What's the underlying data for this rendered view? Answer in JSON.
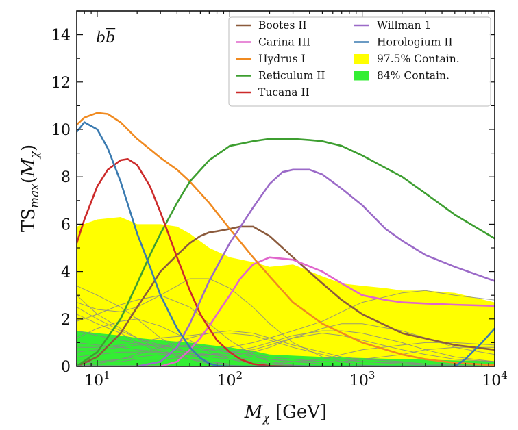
{
  "chart_data": {
    "type": "line",
    "title": "",
    "annotation": "b̅b",
    "xlabel": "M_χ [GeV]",
    "ylabel": "TS_max(M_χ)",
    "xscale": "log",
    "xlim": [
      7,
      10000
    ],
    "ylim": [
      0,
      15
    ],
    "grid": false,
    "legend_position": "top-right",
    "x_tick_labels": [
      {
        "value": 10,
        "label": "10",
        "exp": "1"
      },
      {
        "value": 100,
        "label": "10",
        "exp": "2"
      },
      {
        "value": 1000,
        "label": "10",
        "exp": "3"
      },
      {
        "value": 10000,
        "label": "10",
        "exp": "4"
      }
    ],
    "y_tick_labels": [
      "0",
      "2",
      "4",
      "6",
      "8",
      "10",
      "12",
      "14"
    ],
    "bands": [
      {
        "name": "97.5% Contain.",
        "color": "#ffff00",
        "x": [
          7,
          10,
          15,
          20,
          25,
          30,
          40,
          50,
          70,
          100,
          150,
          200,
          300,
          500,
          700,
          1000,
          1500,
          2000,
          3000,
          5000,
          10000
        ],
        "upper": [
          5.9,
          6.2,
          6.3,
          6.0,
          6.0,
          6.0,
          5.9,
          5.6,
          5.0,
          4.6,
          4.4,
          4.2,
          4.3,
          3.8,
          3.5,
          3.4,
          3.3,
          3.2,
          3.2,
          3.1,
          2.7
        ]
      },
      {
        "name": "84% Contain.",
        "color": "#33ee33",
        "x": [
          7,
          10,
          15,
          20,
          30,
          50,
          70,
          100,
          150,
          200,
          300,
          500,
          1000,
          2000,
          3000,
          5000,
          10000
        ],
        "upper": [
          1.5,
          1.4,
          1.3,
          1.2,
          1.1,
          1.0,
          0.9,
          0.8,
          0.65,
          0.5,
          0.45,
          0.4,
          0.35,
          0.3,
          0.28,
          0.25,
          0.22
        ]
      }
    ],
    "series": [
      {
        "name": "Bootes II",
        "color": "#8b5a3c",
        "x": [
          7,
          10,
          15,
          20,
          25,
          30,
          40,
          50,
          60,
          70,
          80,
          100,
          120,
          150,
          200,
          300,
          500,
          700,
          1000,
          2000,
          5000,
          10000
        ],
        "y": [
          0,
          0.4,
          1.4,
          2.5,
          3.3,
          4.0,
          4.7,
          5.2,
          5.5,
          5.65,
          5.7,
          5.8,
          5.9,
          5.9,
          5.5,
          4.6,
          3.5,
          2.8,
          2.2,
          1.4,
          0.9,
          0.7
        ]
      },
      {
        "name": "Carina III",
        "color": "#e066cc",
        "x": [
          7,
          15,
          30,
          40,
          50,
          60,
          70,
          80,
          100,
          120,
          150,
          200,
          300,
          500,
          700,
          1000,
          1500,
          2000,
          3000,
          5000,
          10000
        ],
        "y": [
          0,
          0,
          0,
          0.2,
          0.7,
          1.2,
          1.7,
          2.2,
          3.0,
          3.7,
          4.3,
          4.6,
          4.5,
          4.0,
          3.5,
          3.0,
          2.8,
          2.7,
          2.65,
          2.6,
          2.55
        ]
      },
      {
        "name": "Hydrus I",
        "color": "#f08a20",
        "x": [
          7,
          8,
          10,
          12,
          15,
          20,
          30,
          40,
          50,
          70,
          100,
          150,
          200,
          300,
          500,
          1000,
          2000,
          3000,
          5000,
          10000
        ],
        "y": [
          10.2,
          10.5,
          10.7,
          10.65,
          10.3,
          9.6,
          8.8,
          8.3,
          7.8,
          6.9,
          5.8,
          4.6,
          3.8,
          2.7,
          1.8,
          1.0,
          0.5,
          0.3,
          0.15,
          0.05
        ]
      },
      {
        "name": "Reticulum II",
        "color": "#3d9e30",
        "x": [
          7,
          10,
          15,
          20,
          25,
          30,
          40,
          50,
          70,
          100,
          150,
          200,
          250,
          300,
          400,
          500,
          700,
          1000,
          2000,
          3000,
          5000,
          10000
        ],
        "y": [
          0,
          0.6,
          2.0,
          3.5,
          4.7,
          5.6,
          6.9,
          7.8,
          8.7,
          9.3,
          9.5,
          9.6,
          9.6,
          9.6,
          9.55,
          9.5,
          9.3,
          8.9,
          8.0,
          7.3,
          6.4,
          5.4
        ]
      },
      {
        "name": "Tucana II",
        "color": "#cc2a2a",
        "x": [
          7,
          8,
          10,
          12,
          15,
          17,
          20,
          25,
          30,
          40,
          50,
          60,
          70,
          80,
          100,
          120,
          150,
          200,
          300
        ],
        "y": [
          5.2,
          6.2,
          7.6,
          8.3,
          8.7,
          8.75,
          8.5,
          7.6,
          6.5,
          4.6,
          3.2,
          2.2,
          1.6,
          1.1,
          0.6,
          0.3,
          0.1,
          0.02,
          0
        ]
      },
      {
        "name": "Willman 1",
        "color": "#9b6ac8",
        "x": [
          7,
          20,
          30,
          40,
          50,
          70,
          100,
          150,
          200,
          250,
          300,
          400,
          500,
          700,
          1000,
          1500,
          2000,
          3000,
          5000,
          10000
        ],
        "y": [
          0,
          0,
          0.2,
          0.8,
          1.8,
          3.6,
          5.2,
          6.7,
          7.7,
          8.2,
          8.3,
          8.3,
          8.1,
          7.5,
          6.8,
          5.8,
          5.3,
          4.7,
          4.2,
          3.6
        ]
      },
      {
        "name": "Horologium II",
        "color": "#3a7ab0",
        "x": [
          7,
          8,
          10,
          12,
          15,
          20,
          25,
          30,
          40,
          50,
          60,
          70,
          80,
          100,
          5000,
          6000,
          8000,
          10000
        ],
        "y": [
          9.9,
          10.3,
          10.0,
          9.2,
          7.8,
          5.6,
          4.2,
          3.0,
          1.6,
          0.8,
          0.35,
          0.12,
          0.03,
          0,
          0,
          0.3,
          1.0,
          1.6
        ]
      }
    ],
    "background_curves": {
      "color": "#888888",
      "x": [
        7,
        10,
        15,
        20,
        30,
        50,
        70,
        100,
        150,
        200,
        300,
        500,
        700,
        1000,
        2000,
        3000,
        5000,
        10000
      ],
      "curves": [
        [
          3.4,
          3.0,
          2.5,
          2.0,
          1.2,
          0.5,
          0.2,
          0.05,
          0,
          0,
          0,
          0,
          0,
          0,
          0,
          0,
          0,
          0
        ],
        [
          3.0,
          2.2,
          1.6,
          1.2,
          0.7,
          0.3,
          0.1,
          0,
          0,
          0,
          0,
          0,
          0,
          0,
          0,
          0,
          0,
          0
        ],
        [
          2.7,
          2.4,
          2.3,
          2.5,
          3.0,
          3.7,
          3.7,
          3.3,
          2.5,
          1.8,
          1.0,
          0.4,
          0.2,
          0.05,
          0,
          0,
          0,
          0
        ],
        [
          2.5,
          2.0,
          1.5,
          1.2,
          0.9,
          0.6,
          0.4,
          0.3,
          0.2,
          0.1,
          0.05,
          0,
          0,
          0,
          0,
          0,
          0,
          0
        ],
        [
          2.2,
          1.8,
          1.4,
          1.0,
          0.6,
          0.3,
          0.2,
          0.1,
          0.1,
          0.1,
          0.2,
          0.3,
          0.5,
          0.7,
          0.9,
          1.0,
          1.0,
          0.9
        ],
        [
          1.9,
          2.2,
          2.6,
          2.8,
          3.0,
          2.5,
          1.8,
          1.1,
          0.5,
          0.2,
          0.05,
          0,
          0,
          0,
          0,
          0,
          0,
          0
        ],
        [
          1.5,
          1.3,
          1.1,
          1.0,
          0.8,
          0.6,
          0.5,
          0.4,
          0.3,
          0.3,
          0.2,
          0.2,
          0.2,
          0.2,
          0.15,
          0.1,
          0.1,
          0.1
        ],
        [
          1.2,
          1.6,
          1.9,
          2.0,
          1.7,
          1.1,
          0.6,
          0.3,
          0.1,
          0,
          0,
          0,
          0,
          0,
          0,
          0,
          0,
          0
        ],
        [
          1.0,
          0.9,
          0.8,
          0.7,
          0.6,
          0.5,
          0.5,
          0.5,
          0.6,
          0.8,
          1.2,
          1.6,
          1.8,
          1.8,
          1.5,
          1.2,
          0.8,
          0.5
        ],
        [
          0.8,
          0.8,
          0.9,
          1.0,
          1.2,
          1.3,
          1.4,
          1.4,
          1.3,
          1.1,
          0.8,
          0.5,
          0.3,
          0.2,
          0.1,
          0.05,
          0,
          0
        ],
        [
          0.6,
          0.7,
          0.8,
          0.9,
          0.9,
          0.8,
          0.7,
          0.6,
          0.5,
          0.4,
          0.3,
          0.2,
          0.2,
          0.3,
          0.5,
          0.7,
          0.8,
          0.8
        ],
        [
          0.4,
          0.5,
          0.6,
          0.6,
          0.6,
          0.5,
          0.5,
          0.6,
          0.8,
          1.0,
          1.3,
          1.5,
          1.5,
          1.4,
          1.0,
          0.7,
          0.4,
          0.2
        ],
        [
          0.3,
          0.3,
          0.3,
          0.4,
          0.5,
          0.6,
          0.7,
          0.8,
          1.0,
          1.2,
          1.5,
          1.9,
          2.3,
          2.7,
          3.1,
          3.2,
          3.0,
          2.8
        ],
        [
          0.2,
          0.2,
          0.2,
          0.3,
          0.3,
          0.4,
          0.5,
          0.6,
          0.7,
          0.9,
          1.2,
          1.4,
          1.3,
          1.1,
          0.7,
          0.5,
          0.3,
          0.2
        ],
        [
          0.1,
          0.2,
          0.3,
          0.5,
          0.8,
          1.2,
          1.4,
          1.5,
          1.4,
          1.2,
          0.9,
          0.6,
          0.4,
          0.3,
          0.2,
          0.1,
          0.05,
          0
        ],
        [
          0,
          0.1,
          0.3,
          0.5,
          0.8,
          0.9,
          0.8,
          0.6,
          0.4,
          0.3,
          0.2,
          0.1,
          0.1,
          0.1,
          0.1,
          0.1,
          0.1,
          0.1
        ]
      ]
    },
    "legend": [
      {
        "label": "Bootes II",
        "kind": "line",
        "color": "#8b5a3c",
        "col": 0,
        "row": 0
      },
      {
        "label": "Carina III",
        "kind": "line",
        "color": "#e066cc",
        "col": 0,
        "row": 1
      },
      {
        "label": "Hydrus I",
        "kind": "line",
        "color": "#f08a20",
        "col": 0,
        "row": 2
      },
      {
        "label": "Reticulum II",
        "kind": "line",
        "color": "#3d9e30",
        "col": 0,
        "row": 3
      },
      {
        "label": "Tucana II",
        "kind": "line",
        "color": "#cc2a2a",
        "col": 0,
        "row": 4
      },
      {
        "label": "Willman 1",
        "kind": "line",
        "color": "#9b6ac8",
        "col": 1,
        "row": 0
      },
      {
        "label": "Horologium II",
        "kind": "line",
        "color": "#3a7ab0",
        "col": 1,
        "row": 1
      },
      {
        "label": "97.5% Contain.",
        "kind": "patch",
        "color": "#ffff00",
        "col": 1,
        "row": 2
      },
      {
        "label": "84% Contain.",
        "kind": "patch",
        "color": "#33ee33",
        "col": 1,
        "row": 3
      }
    ]
  }
}
